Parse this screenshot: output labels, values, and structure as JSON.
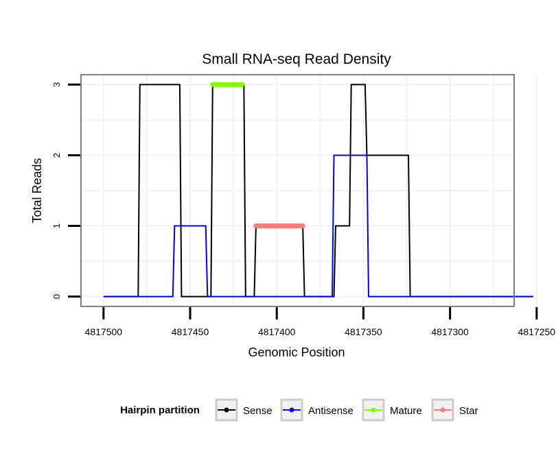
{
  "chart_data": {
    "type": "line",
    "title": "Small RNA-seq Read Density",
    "xlabel": "Genomic Position",
    "ylabel": "Total Reads",
    "xlim": [
      4817513,
      4817263
    ],
    "ylim": [
      -0.14,
      3.14
    ],
    "x_reversed": true,
    "x_ticks": [
      4817500,
      4817450,
      4817400,
      4817350,
      4817300,
      4817250
    ],
    "x_tick_labels": [
      "4817500",
      "4817450",
      "4817400",
      "4817350",
      "4817300",
      "4817250"
    ],
    "y_ticks": [
      0,
      1,
      2,
      3
    ],
    "y_tick_labels": [
      "0",
      "1",
      "2",
      "3"
    ],
    "grid": true,
    "legend_title": "Hairpin partition",
    "legend_position": "bottom",
    "series": [
      {
        "name": "Sense",
        "color": "#000000",
        "x": [
          4817500,
          4817480,
          4817479,
          4817456,
          4817455,
          4817438,
          4817437,
          4817419,
          4817418,
          4817413,
          4817412,
          4817385,
          4817384,
          4817367,
          4817366,
          4817358,
          4817357,
          4817349,
          4817348,
          4817342,
          4817341,
          4817324,
          4817323,
          4817252
        ],
        "y": [
          0,
          0,
          3,
          3,
          0,
          0,
          3,
          3,
          0,
          0,
          1,
          1,
          0,
          0,
          1,
          1,
          3,
          3,
          2,
          2,
          2,
          2,
          0,
          0
        ]
      },
      {
        "name": "Antisense",
        "color": "#0000ff",
        "x": [
          4817500,
          4817474,
          4817460,
          4817459,
          4817441,
          4817440,
          4817420,
          4817400,
          4817368,
          4817367,
          4817348,
          4817347,
          4817330,
          4817252
        ],
        "y": [
          0,
          0,
          0,
          1,
          1,
          0,
          0,
          0,
          0,
          2,
          2,
          0,
          0,
          0
        ]
      },
      {
        "name": "Mature",
        "color": "#7fff00",
        "x": [
          4817437,
          4817420
        ],
        "y": [
          3,
          3
        ]
      },
      {
        "name": "Star",
        "color": "#fa8072",
        "x": [
          4817412,
          4817385
        ],
        "y": [
          1,
          1
        ]
      }
    ]
  }
}
